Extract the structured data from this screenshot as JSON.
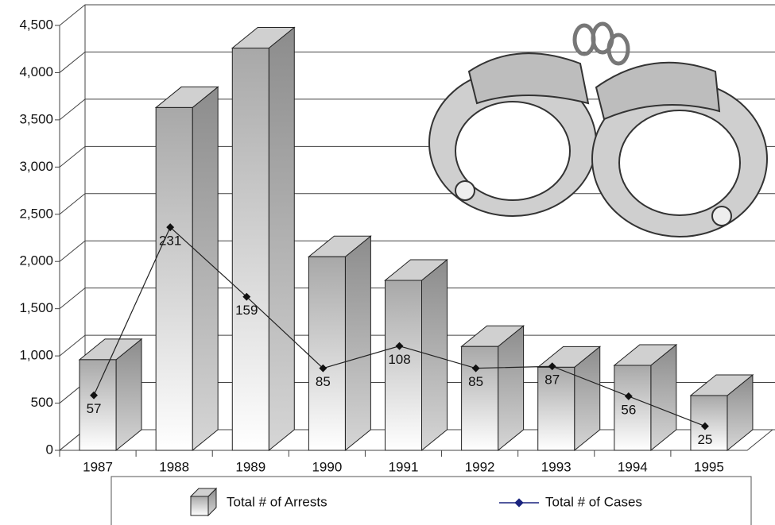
{
  "chart_data": {
    "type": "bar3d_line",
    "categories": [
      "1987",
      "1988",
      "1989",
      "1990",
      "1991",
      "1992",
      "1993",
      "1994",
      "1995"
    ],
    "series": [
      {
        "name": "Total # of Arrests",
        "type": "bar",
        "color": "#9a9a9a",
        "values": [
          960,
          3630,
          4260,
          2050,
          1800,
          1100,
          880,
          900,
          580
        ]
      },
      {
        "name": "Total # of Cases",
        "type": "line",
        "axis": "y2",
        "color": "#1a237e",
        "values": [
          57,
          231,
          159,
          85,
          108,
          85,
          87,
          56,
          25
        ]
      }
    ],
    "ylim": [
      0,
      4500
    ],
    "yticks": [
      0,
      500,
      {
        "value": 1000,
        "label": "1,000"
      },
      {
        "value": 1500,
        "label": "1,500"
      },
      {
        "value": 2000,
        "label": "2,000"
      },
      {
        "value": 2500,
        "label": "2,500"
      },
      {
        "value": 3000,
        "label": "3,000"
      },
      {
        "value": 3500,
        "label": "3,500"
      },
      {
        "value": 4000,
        "label": "4,000"
      },
      {
        "value": 4500,
        "label": "4,500"
      }
    ],
    "y2lim": [
      0,
      440
    ],
    "grid": true,
    "legend": "bottom"
  }
}
